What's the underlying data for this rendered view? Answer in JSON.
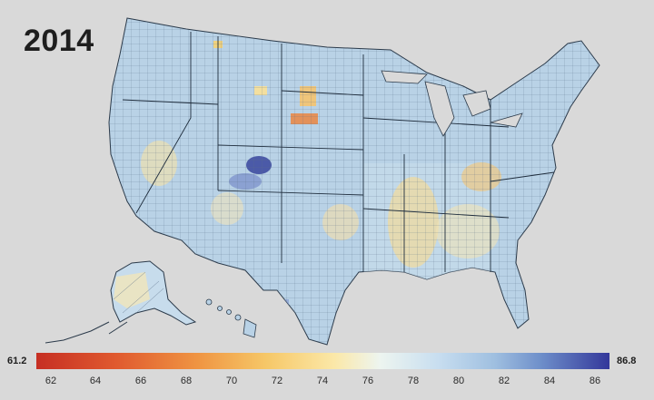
{
  "title": "2014",
  "legend": {
    "min_label": "61.2",
    "max_label": "86.8",
    "ticks": [
      "62",
      "64",
      "66",
      "68",
      "70",
      "72",
      "74",
      "76",
      "78",
      "80",
      "82",
      "84",
      "86"
    ],
    "colors": [
      "#c62f23",
      "#e05a2f",
      "#ef9442",
      "#f6c767",
      "#fbe8a8",
      "#edf5f0",
      "#c8def0",
      "#9fbfe0",
      "#6e8fca",
      "#33379a"
    ]
  },
  "map": {
    "land_color": "#b9d2e6",
    "border_color": "#2b3a4a",
    "background": "#d9d9d9"
  }
}
